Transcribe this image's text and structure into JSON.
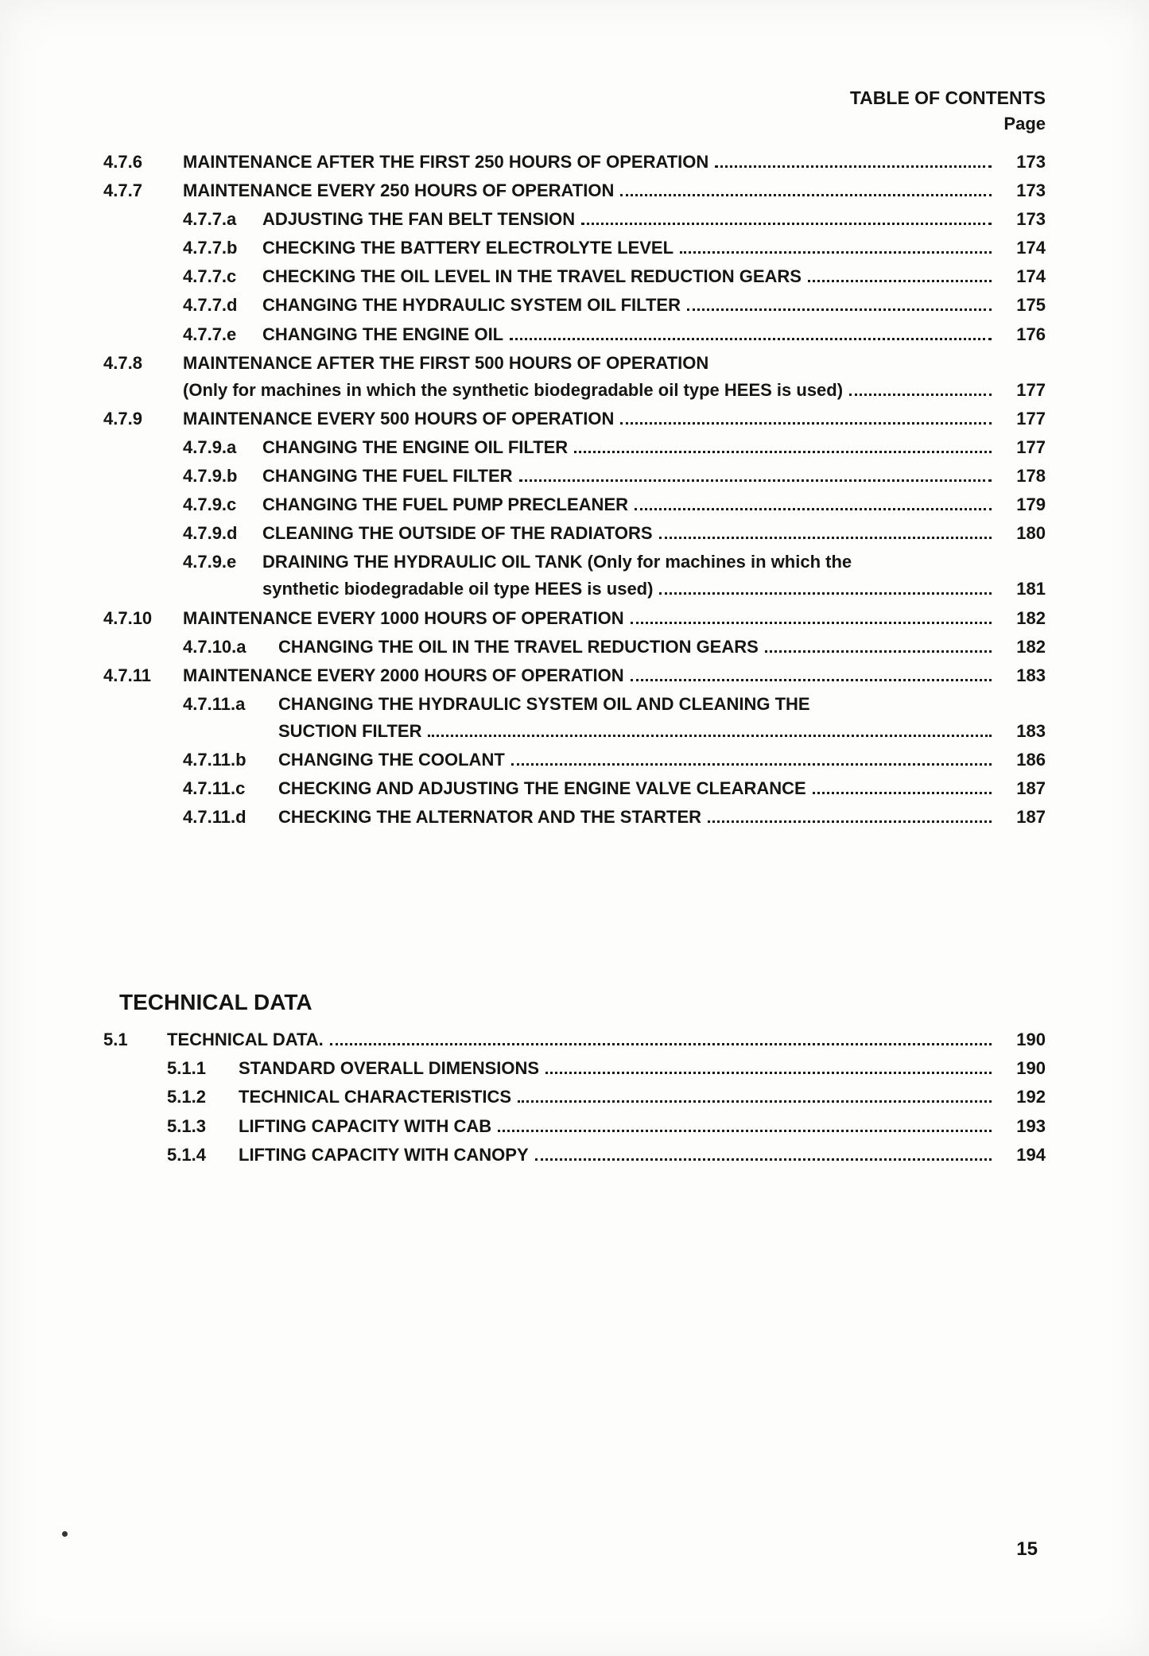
{
  "header": "TABLE OF CONTENTS",
  "page_label": "Page",
  "footer_page": "15",
  "toc_main": [
    {
      "level": 0,
      "num": "4.7.6",
      "title": "MAINTENANCE AFTER THE FIRST 250 HOURS OF OPERATION",
      "page": "173"
    },
    {
      "level": 0,
      "num": "4.7.7",
      "title": "MAINTENANCE EVERY 250 HOURS OF OPERATION",
      "page": "173"
    },
    {
      "level": 1,
      "num": "4.7.7.a",
      "title": "ADJUSTING THE FAN BELT TENSION",
      "page": "173"
    },
    {
      "level": 1,
      "num": "4.7.7.b",
      "title": "CHECKING THE BATTERY ELECTROLYTE LEVEL",
      "page": "174"
    },
    {
      "level": 1,
      "num": "4.7.7.c",
      "title": "CHECKING THE OIL LEVEL IN THE TRAVEL REDUCTION GEARS",
      "page": "174"
    },
    {
      "level": 1,
      "num": "4.7.7.d",
      "title": "CHANGING THE HYDRAULIC SYSTEM OIL FILTER",
      "page": "175"
    },
    {
      "level": 1,
      "num": "4.7.7.e",
      "title": "CHANGING THE ENGINE OIL",
      "page": "176"
    },
    {
      "level": 0,
      "num": "4.7.8",
      "title": "MAINTENANCE AFTER THE FIRST 500 HOURS OF OPERATION",
      "wrap": "(Only for machines in which the synthetic biodegradable oil type HEES is used)",
      "page": "177"
    },
    {
      "level": 0,
      "num": "4.7.9",
      "title": "MAINTENANCE EVERY 500 HOURS OF OPERATION",
      "page": "177"
    },
    {
      "level": 1,
      "num": "4.7.9.a",
      "title": "CHANGING THE ENGINE OIL FILTER",
      "page": "177"
    },
    {
      "level": 1,
      "num": "4.7.9.b",
      "title": "CHANGING THE FUEL FILTER",
      "page": "178"
    },
    {
      "level": 1,
      "num": "4.7.9.c",
      "title": "CHANGING THE FUEL PUMP PRECLEANER",
      "page": "179"
    },
    {
      "level": 1,
      "num": "4.7.9.d",
      "title": "CLEANING THE OUTSIDE OF THE RADIATORS",
      "page": "180"
    },
    {
      "level": 1,
      "num": "4.7.9.e",
      "title": "DRAINING THE HYDRAULIC OIL TANK (Only for machines in which the",
      "wrap": "synthetic biodegradable oil type HEES is used)",
      "page": "181"
    },
    {
      "level": 0,
      "num": "4.7.10",
      "title": "MAINTENANCE EVERY 1000 HOURS OF OPERATION",
      "page": "182"
    },
    {
      "level": 2,
      "num": "4.7.10.a",
      "title": "CHANGING THE OIL IN THE TRAVEL REDUCTION GEARS",
      "page": "182"
    },
    {
      "level": 0,
      "num": "4.7.11",
      "title": "MAINTENANCE EVERY 2000 HOURS OF OPERATION",
      "page": "183"
    },
    {
      "level": 2,
      "num": "4.7.11.a",
      "title": "CHANGING THE HYDRAULIC SYSTEM OIL AND CLEANING THE",
      "wrap": "SUCTION FILTER",
      "page": "183"
    },
    {
      "level": 2,
      "num": "4.7.11.b",
      "title": "CHANGING THE COOLANT",
      "page": "186"
    },
    {
      "level": 2,
      "num": "4.7.11.c",
      "title": "CHECKING AND ADJUSTING THE ENGINE VALVE CLEARANCE",
      "page": "187"
    },
    {
      "level": 2,
      "num": "4.7.11.d",
      "title": "CHECKING THE ALTERNATOR AND THE STARTER",
      "page": "187"
    }
  ],
  "section_heading": "TECHNICAL DATA",
  "toc_tech": [
    {
      "level": 0,
      "num": "5.1",
      "title": "TECHNICAL DATA.",
      "page": "190"
    },
    {
      "level": 1,
      "num": "5.1.1",
      "title": "STANDARD OVERALL DIMENSIONS",
      "page": "190"
    },
    {
      "level": 1,
      "num": "5.1.2",
      "title": "TECHNICAL CHARACTERISTICS",
      "page": "192"
    },
    {
      "level": 1,
      "num": "5.1.3",
      "title": "LIFTING CAPACITY WITH CAB",
      "page": "193"
    },
    {
      "level": 1,
      "num": "5.1.4",
      "title": "LIFTING CAPACITY WITH CANOPY",
      "page": "194"
    }
  ]
}
